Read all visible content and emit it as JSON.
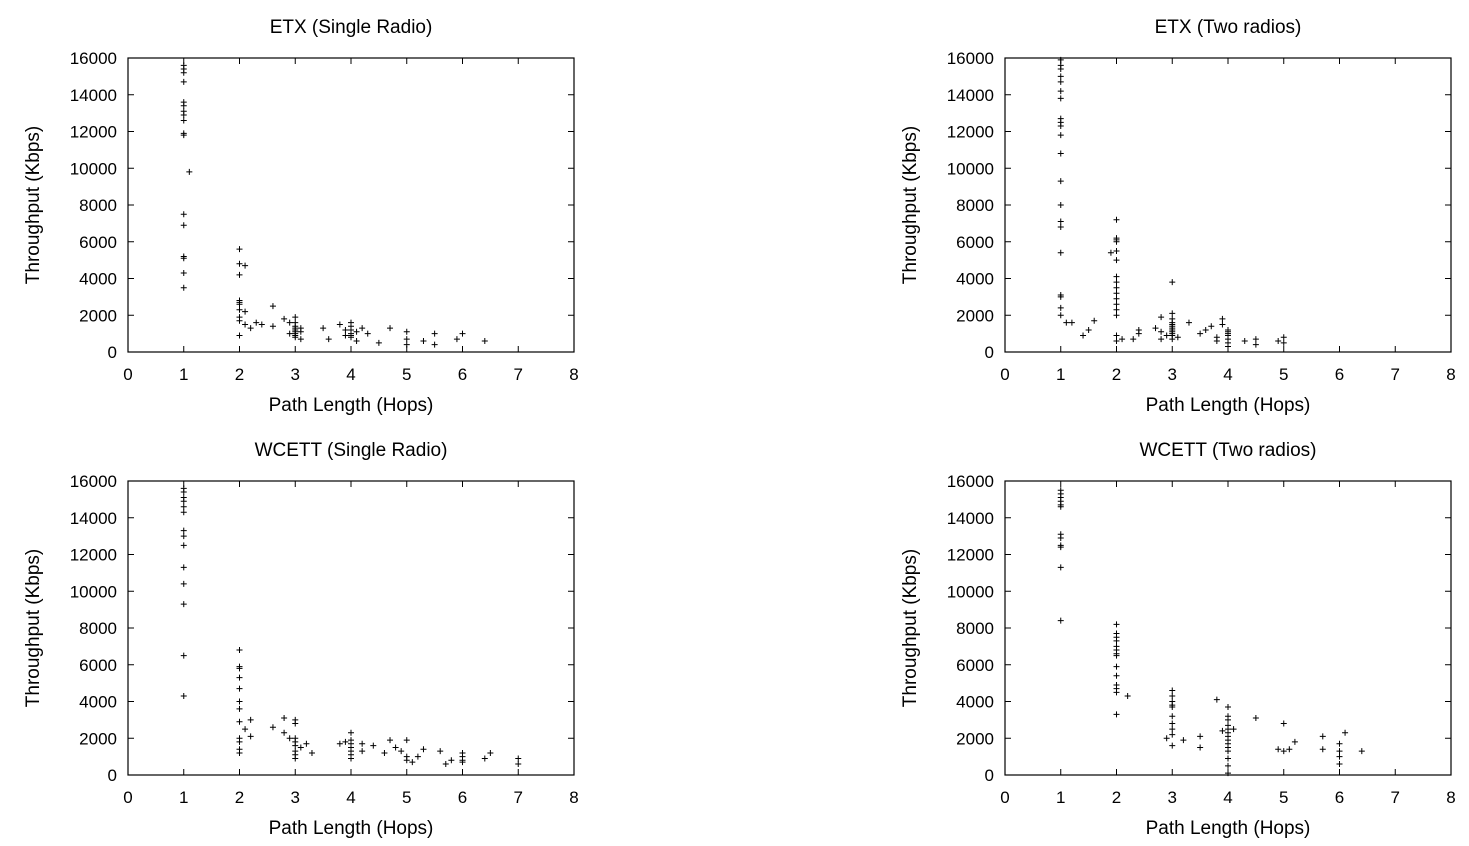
{
  "chart_data": [
    {
      "type": "scatter",
      "title": "ETX (Single Radio)",
      "xlabel": "Path Length (Hops)",
      "ylabel": "Throughput (Kbps)",
      "xlim": [
        0,
        8
      ],
      "ylim": [
        0,
        16000
      ],
      "xticks": [
        "0",
        "1",
        "2",
        "3",
        "4",
        "5",
        "6",
        "7",
        "8"
      ],
      "yticks": [
        "0",
        "2000",
        "4000",
        "6000",
        "8000",
        "10000",
        "12000",
        "14000",
        "16000"
      ],
      "marker": "plus",
      "points": [
        [
          1,
          15600
        ],
        [
          1,
          15400
        ],
        [
          1,
          15200
        ],
        [
          1,
          14700
        ],
        [
          1,
          13600
        ],
        [
          1,
          13400
        ],
        [
          1,
          13100
        ],
        [
          1,
          12900
        ],
        [
          1,
          12600
        ],
        [
          1,
          11900
        ],
        [
          1,
          11800
        ],
        [
          1.1,
          9800
        ],
        [
          1,
          7500
        ],
        [
          1,
          6900
        ],
        [
          1,
          5200
        ],
        [
          1,
          5100
        ],
        [
          1,
          4300
        ],
        [
          1,
          3500
        ],
        [
          2,
          5600
        ],
        [
          2,
          4800
        ],
        [
          2.1,
          4700
        ],
        [
          2,
          4200
        ],
        [
          2,
          2800
        ],
        [
          2,
          2700
        ],
        [
          2,
          2600
        ],
        [
          2,
          2300
        ],
        [
          2.1,
          2200
        ],
        [
          2,
          1900
        ],
        [
          2,
          1700
        ],
        [
          2.1,
          1500
        ],
        [
          2.2,
          1300
        ],
        [
          2,
          900
        ],
        [
          2.3,
          1600
        ],
        [
          2.4,
          1500
        ],
        [
          2.6,
          2500
        ],
        [
          2.6,
          1400
        ],
        [
          2.8,
          1800
        ],
        [
          2.9,
          1600
        ],
        [
          3,
          1900
        ],
        [
          3,
          1600
        ],
        [
          3,
          1400
        ],
        [
          3,
          1300
        ],
        [
          3,
          1200
        ],
        [
          3,
          1100
        ],
        [
          3,
          1000
        ],
        [
          3,
          900
        ],
        [
          3,
          800
        ],
        [
          2.9,
          1000
        ],
        [
          3.1,
          1300
        ],
        [
          3.1,
          1100
        ],
        [
          3.1,
          700
        ],
        [
          3.5,
          1300
        ],
        [
          3.6,
          700
        ],
        [
          3.8,
          1500
        ],
        [
          3.9,
          1200
        ],
        [
          3.9,
          900
        ],
        [
          4,
          1600
        ],
        [
          4,
          1400
        ],
        [
          4,
          1200
        ],
        [
          4,
          1000
        ],
        [
          4,
          900
        ],
        [
          4,
          800
        ],
        [
          4.1,
          1100
        ],
        [
          4.1,
          600
        ],
        [
          4.2,
          1300
        ],
        [
          4.3,
          1000
        ],
        [
          4.5,
          500
        ],
        [
          4.7,
          1300
        ],
        [
          5,
          1100
        ],
        [
          5,
          700
        ],
        [
          5,
          400
        ],
        [
          5.3,
          600
        ],
        [
          5.5,
          1000
        ],
        [
          5.5,
          400
        ],
        [
          5.9,
          700
        ],
        [
          6,
          1000
        ],
        [
          6.4,
          600
        ]
      ]
    },
    {
      "type": "scatter",
      "title": "ETX (Two radios)",
      "xlabel": "Path Length (Hops)",
      "ylabel": "Throughput (Kbps)",
      "xlim": [
        0,
        8
      ],
      "ylim": [
        0,
        16000
      ],
      "xticks": [
        "0",
        "1",
        "2",
        "3",
        "4",
        "5",
        "6",
        "7",
        "8"
      ],
      "yticks": [
        "0",
        "2000",
        "4000",
        "6000",
        "8000",
        "10000",
        "12000",
        "14000",
        "16000"
      ],
      "marker": "plus",
      "points": [
        [
          1,
          15900
        ],
        [
          1,
          15600
        ],
        [
          1,
          15400
        ],
        [
          1,
          15000
        ],
        [
          1,
          14700
        ],
        [
          1,
          14200
        ],
        [
          1,
          13800
        ],
        [
          1,
          12700
        ],
        [
          1,
          12500
        ],
        [
          1,
          12300
        ],
        [
          1,
          11800
        ],
        [
          1,
          10800
        ],
        [
          1,
          9300
        ],
        [
          1,
          8000
        ],
        [
          1,
          7100
        ],
        [
          1,
          6800
        ],
        [
          1,
          5400
        ],
        [
          1,
          3100
        ],
        [
          1,
          3000
        ],
        [
          1,
          2400
        ],
        [
          1,
          2000
        ],
        [
          1.1,
          1600
        ],
        [
          1.2,
          1600
        ],
        [
          1.4,
          900
        ],
        [
          1.5,
          1200
        ],
        [
          1.6,
          1700
        ],
        [
          2,
          7200
        ],
        [
          2,
          6200
        ],
        [
          2,
          6100
        ],
        [
          2,
          6000
        ],
        [
          2,
          5500
        ],
        [
          1.9,
          5400
        ],
        [
          2,
          5000
        ],
        [
          2,
          4100
        ],
        [
          2,
          3800
        ],
        [
          2,
          3500
        ],
        [
          2,
          3200
        ],
        [
          2,
          2900
        ],
        [
          2,
          2600
        ],
        [
          2,
          2300
        ],
        [
          2,
          2000
        ],
        [
          2,
          900
        ],
        [
          2,
          600
        ],
        [
          2.1,
          700
        ],
        [
          2.3,
          700
        ],
        [
          2.4,
          1000
        ],
        [
          2.4,
          1200
        ],
        [
          2.7,
          1300
        ],
        [
          2.8,
          1900
        ],
        [
          2.8,
          1100
        ],
        [
          2.8,
          700
        ],
        [
          2.9,
          900
        ],
        [
          3,
          3800
        ],
        [
          3,
          2100
        ],
        [
          3,
          1800
        ],
        [
          3,
          1600
        ],
        [
          3,
          1500
        ],
        [
          3,
          1400
        ],
        [
          3,
          1300
        ],
        [
          3,
          1200
        ],
        [
          3,
          1100
        ],
        [
          3,
          1000
        ],
        [
          3,
          900
        ],
        [
          3,
          700
        ],
        [
          3.1,
          800
        ],
        [
          3.3,
          1600
        ],
        [
          3.5,
          1000
        ],
        [
          3.6,
          1200
        ],
        [
          3.7,
          1400
        ],
        [
          3.8,
          800
        ],
        [
          3.8,
          600
        ],
        [
          3.9,
          1800
        ],
        [
          3.9,
          1500
        ],
        [
          4,
          1200
        ],
        [
          4,
          1100
        ],
        [
          4,
          1000
        ],
        [
          4,
          900
        ],
        [
          4,
          700
        ],
        [
          4,
          500
        ],
        [
          4,
          300
        ],
        [
          4.3,
          600
        ],
        [
          4.5,
          700
        ],
        [
          4.5,
          400
        ],
        [
          4.9,
          600
        ],
        [
          5,
          800
        ],
        [
          5,
          500
        ]
      ]
    },
    {
      "type": "scatter",
      "title": "WCETT (Single Radio)",
      "xlabel": "Path Length (Hops)",
      "ylabel": "Throughput (Kbps)",
      "xlim": [
        0,
        8
      ],
      "ylim": [
        0,
        16000
      ],
      "xticks": [
        "0",
        "1",
        "2",
        "3",
        "4",
        "5",
        "6",
        "7",
        "8"
      ],
      "yticks": [
        "0",
        "2000",
        "4000",
        "6000",
        "8000",
        "10000",
        "12000",
        "14000",
        "16000"
      ],
      "marker": "plus",
      "points": [
        [
          1,
          15600
        ],
        [
          1,
          15400
        ],
        [
          1,
          15100
        ],
        [
          1,
          14900
        ],
        [
          1,
          14600
        ],
        [
          1,
          14300
        ],
        [
          1,
          13300
        ],
        [
          1,
          13000
        ],
        [
          1,
          12500
        ],
        [
          1,
          11300
        ],
        [
          1,
          10400
        ],
        [
          1,
          9300
        ],
        [
          1,
          6500
        ],
        [
          1,
          4300
        ],
        [
          2,
          6800
        ],
        [
          2,
          5900
        ],
        [
          2,
          5800
        ],
        [
          2,
          5300
        ],
        [
          2,
          4700
        ],
        [
          2,
          4000
        ],
        [
          2,
          3600
        ],
        [
          2,
          2900
        ],
        [
          2,
          2000
        ],
        [
          2,
          1800
        ],
        [
          2,
          1400
        ],
        [
          2,
          1200
        ],
        [
          2.1,
          2500
        ],
        [
          2.2,
          3000
        ],
        [
          2.2,
          2100
        ],
        [
          2.6,
          2600
        ],
        [
          2.8,
          3100
        ],
        [
          2.8,
          2300
        ],
        [
          2.9,
          2000
        ],
        [
          3,
          3000
        ],
        [
          3,
          2800
        ],
        [
          3,
          2000
        ],
        [
          3,
          1800
        ],
        [
          3,
          1600
        ],
        [
          3,
          1300
        ],
        [
          3,
          1100
        ],
        [
          3,
          900
        ],
        [
          3.1,
          1500
        ],
        [
          3.2,
          1700
        ],
        [
          3.3,
          1200
        ],
        [
          3.8,
          1700
        ],
        [
          3.9,
          1800
        ],
        [
          4,
          2300
        ],
        [
          4,
          1900
        ],
        [
          4,
          1700
        ],
        [
          4,
          1500
        ],
        [
          4,
          1300
        ],
        [
          4,
          1100
        ],
        [
          4,
          900
        ],
        [
          4.2,
          1700
        ],
        [
          4.2,
          1300
        ],
        [
          4.4,
          1600
        ],
        [
          4.6,
          1200
        ],
        [
          4.7,
          1900
        ],
        [
          4.8,
          1500
        ],
        [
          5,
          1900
        ],
        [
          4.9,
          1300
        ],
        [
          5,
          1000
        ],
        [
          5,
          800
        ],
        [
          5.1,
          700
        ],
        [
          5.2,
          1000
        ],
        [
          5.3,
          1400
        ],
        [
          5.6,
          1300
        ],
        [
          5.7,
          600
        ],
        [
          5.8,
          800
        ],
        [
          6,
          1200
        ],
        [
          6,
          1000
        ],
        [
          6,
          800
        ],
        [
          6,
          700
        ],
        [
          6.4,
          900
        ],
        [
          6.5,
          1200
        ],
        [
          7,
          900
        ],
        [
          7,
          600
        ]
      ]
    },
    {
      "type": "scatter",
      "title": "WCETT (Two radios)",
      "xlabel": "Path Length (Hops)",
      "ylabel": "Throughput (Kbps)",
      "xlim": [
        0,
        8
      ],
      "ylim": [
        0,
        16000
      ],
      "xticks": [
        "0",
        "1",
        "2",
        "3",
        "4",
        "5",
        "6",
        "7",
        "8"
      ],
      "yticks": [
        "0",
        "2000",
        "4000",
        "6000",
        "8000",
        "10000",
        "12000",
        "14000",
        "16000"
      ],
      "marker": "plus",
      "points": [
        [
          1,
          15500
        ],
        [
          1,
          15300
        ],
        [
          1,
          15100
        ],
        [
          1,
          14900
        ],
        [
          1,
          14700
        ],
        [
          1,
          14600
        ],
        [
          1,
          13100
        ],
        [
          1,
          12900
        ],
        [
          1,
          12500
        ],
        [
          1,
          12400
        ],
        [
          1,
          11300
        ],
        [
          1,
          8400
        ],
        [
          2,
          8200
        ],
        [
          2,
          7700
        ],
        [
          2,
          7500
        ],
        [
          2,
          7300
        ],
        [
          2,
          7000
        ],
        [
          2,
          6800
        ],
        [
          2,
          6600
        ],
        [
          2,
          6500
        ],
        [
          2,
          5900
        ],
        [
          2,
          5400
        ],
        [
          2,
          4900
        ],
        [
          2,
          4700
        ],
        [
          2,
          4500
        ],
        [
          2,
          3300
        ],
        [
          2.2,
          4300
        ],
        [
          3,
          4600
        ],
        [
          3,
          4300
        ],
        [
          3,
          4000
        ],
        [
          3,
          3800
        ],
        [
          3,
          3700
        ],
        [
          3,
          3200
        ],
        [
          3,
          2800
        ],
        [
          3,
          2500
        ],
        [
          3,
          2200
        ],
        [
          3,
          1600
        ],
        [
          2.9,
          2000
        ],
        [
          3.2,
          1900
        ],
        [
          3.5,
          2100
        ],
        [
          3.5,
          1500
        ],
        [
          3.8,
          4100
        ],
        [
          4,
          3700
        ],
        [
          4,
          3200
        ],
        [
          4,
          3000
        ],
        [
          4,
          2700
        ],
        [
          4,
          2500
        ],
        [
          4,
          2300
        ],
        [
          4,
          2100
        ],
        [
          4,
          1900
        ],
        [
          4,
          1700
        ],
        [
          4,
          1500
        ],
        [
          4,
          1300
        ],
        [
          4,
          900
        ],
        [
          4,
          500
        ],
        [
          4,
          100
        ],
        [
          3.9,
          2400
        ],
        [
          4.1,
          2500
        ],
        [
          4.5,
          3100
        ],
        [
          5,
          2800
        ],
        [
          4.9,
          1400
        ],
        [
          5,
          1300
        ],
        [
          5.1,
          1400
        ],
        [
          5.2,
          1800
        ],
        [
          5.7,
          2100
        ],
        [
          5.7,
          1400
        ],
        [
          6,
          1700
        ],
        [
          6,
          1300
        ],
        [
          6,
          1000
        ],
        [
          6,
          600
        ],
        [
          6.1,
          2300
        ],
        [
          6.4,
          1300
        ]
      ]
    }
  ]
}
